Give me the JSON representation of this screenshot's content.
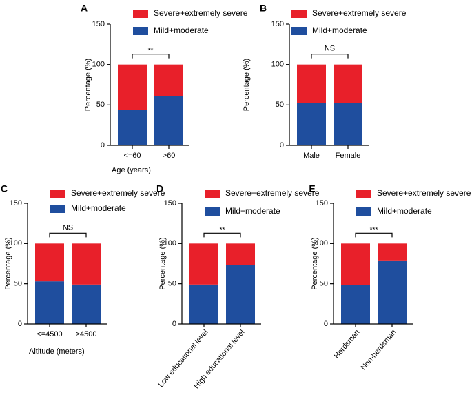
{
  "chart_data": [
    {
      "panel": "A",
      "type": "bar",
      "stacked": true,
      "categories": [
        "<=60",
        ">60"
      ],
      "series": [
        {
          "name": "Mild+moderate",
          "values": [
            44,
            61
          ],
          "color": "#1f4e9e"
        },
        {
          "name": "Severe+extremely severe",
          "values": [
            56,
            39
          ],
          "color": "#e8202a"
        }
      ],
      "xlabel": "Age (years)",
      "ylabel": "Percentage (%)",
      "yticks": [
        "0",
        "50",
        "100",
        "150"
      ],
      "ylim": [
        0,
        150
      ],
      "significance": "**",
      "legend_position": "top-right",
      "rotate_labels": false
    },
    {
      "panel": "B",
      "type": "bar",
      "stacked": true,
      "categories": [
        "Male",
        "Female"
      ],
      "series": [
        {
          "name": "Mild+moderate",
          "values": [
            52,
            52
          ],
          "color": "#1f4e9e"
        },
        {
          "name": "Severe+extremely severe",
          "values": [
            48,
            48
          ],
          "color": "#e8202a"
        }
      ],
      "xlabel": "",
      "ylabel": "Percentage (%)",
      "yticks": [
        "0",
        "50",
        "100",
        "150"
      ],
      "ylim": [
        0,
        150
      ],
      "significance": "NS",
      "legend_position": "top-right",
      "rotate_labels": false
    },
    {
      "panel": "C",
      "type": "bar",
      "stacked": true,
      "categories": [
        "<=4500",
        ">4500"
      ],
      "series": [
        {
          "name": "Mild+moderate",
          "values": [
            53,
            49
          ],
          "color": "#1f4e9e"
        },
        {
          "name": "Severe+extremely severe",
          "values": [
            47,
            51
          ],
          "color": "#e8202a"
        }
      ],
      "xlabel": "Altitude (meters)",
      "ylabel": "Percentage (%)",
      "yticks": [
        "0",
        "50",
        "100",
        "150"
      ],
      "ylim": [
        0,
        150
      ],
      "significance": "NS",
      "legend_position": "top-right",
      "rotate_labels": false
    },
    {
      "panel": "D",
      "type": "bar",
      "stacked": true,
      "categories": [
        "Low educational level",
        "High educational level"
      ],
      "series": [
        {
          "name": "Mild+moderate",
          "values": [
            49,
            73
          ],
          "color": "#1f4e9e"
        },
        {
          "name": "Severe+extremely severe",
          "values": [
            51,
            27
          ],
          "color": "#e8202a"
        }
      ],
      "xlabel": "",
      "ylabel": "Percentage (%)",
      "yticks": [
        "0",
        "50",
        "100",
        "150"
      ],
      "ylim": [
        0,
        150
      ],
      "significance": "**",
      "legend_position": "top-right",
      "rotate_labels": true
    },
    {
      "panel": "E",
      "type": "bar",
      "stacked": true,
      "categories": [
        "Herdsman",
        "Non-herdsman"
      ],
      "series": [
        {
          "name": "Mild+moderate",
          "values": [
            48,
            79
          ],
          "color": "#1f4e9e"
        },
        {
          "name": "Severe+extremely severe",
          "values": [
            52,
            21
          ],
          "color": "#e8202a"
        }
      ],
      "xlabel": "",
      "ylabel": "Percentage (%)",
      "yticks": [
        "0",
        "50",
        "100",
        "150"
      ],
      "ylim": [
        0,
        150
      ],
      "significance": "***",
      "legend_position": "top-right",
      "rotate_labels": true
    }
  ]
}
